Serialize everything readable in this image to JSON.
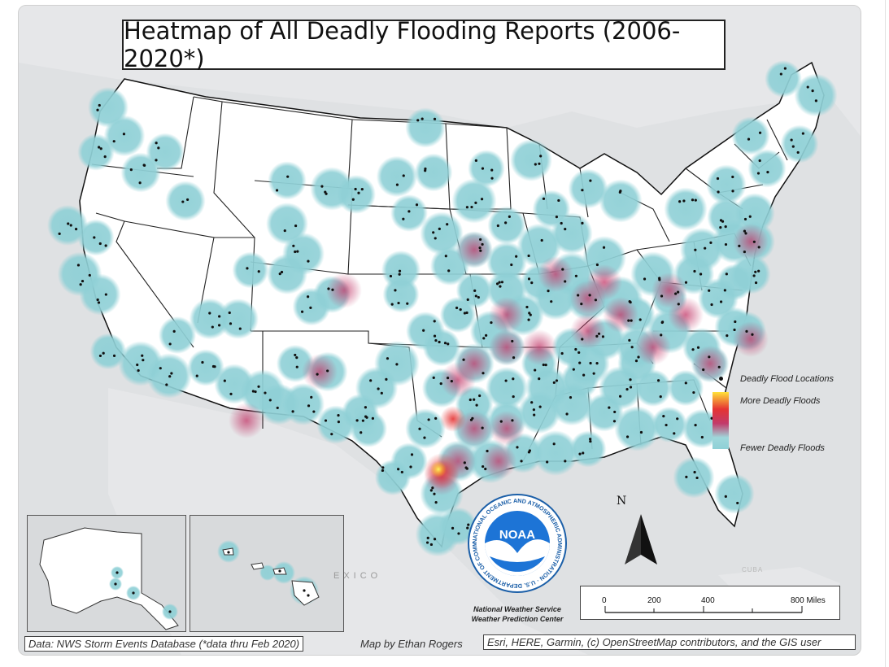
{
  "title": "Heatmap of All Deadly Flooding Reports (2006-2020*)",
  "legend": {
    "points_label": "Deadly Flood Locations",
    "high_label": "More Deadly Floods",
    "low_label": "Fewer Deadly Floods",
    "colors": {
      "low": "#8fd0d6",
      "mid": "#c23a6a",
      "high": "#e53333",
      "peak": "#ffe23a"
    }
  },
  "labels": {
    "mexico": "EXICO",
    "cuba": "CUBA"
  },
  "north_arrow": "N",
  "noaa": {
    "logo_text": "NOAA",
    "ring_text": "NATIONAL OCEANIC AND ATMOSPHERIC ADMINISTRATION · U.S. DEPARTMENT OF COMMERCE",
    "line1": "National Weather Service",
    "line2": "Weather Prediction Center"
  },
  "scale_bar": {
    "ticks": [
      "0",
      "200",
      "400",
      "800 Miles"
    ]
  },
  "credits": {
    "data_source": "Data: NWS Storm Events Database (*data thru Feb 2020)",
    "author": "Map by Ethan Rogers",
    "basemap": "Esri, HERE, Garmin, (c) OpenStreetMap contributors, and the GIS user"
  }
}
